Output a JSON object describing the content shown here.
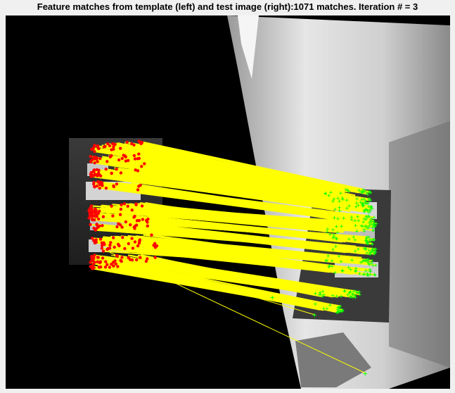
{
  "figure": {
    "title": "Feature matches from template (left) and test image (right):1071 matches.  Iteration # = 3"
  },
  "colors": {
    "background": "#000000",
    "window": "#f0f0f0",
    "match_lines": "#ffff00",
    "template_keypoints": "#ff0000",
    "test_keypoints": "#00ff00"
  }
}
